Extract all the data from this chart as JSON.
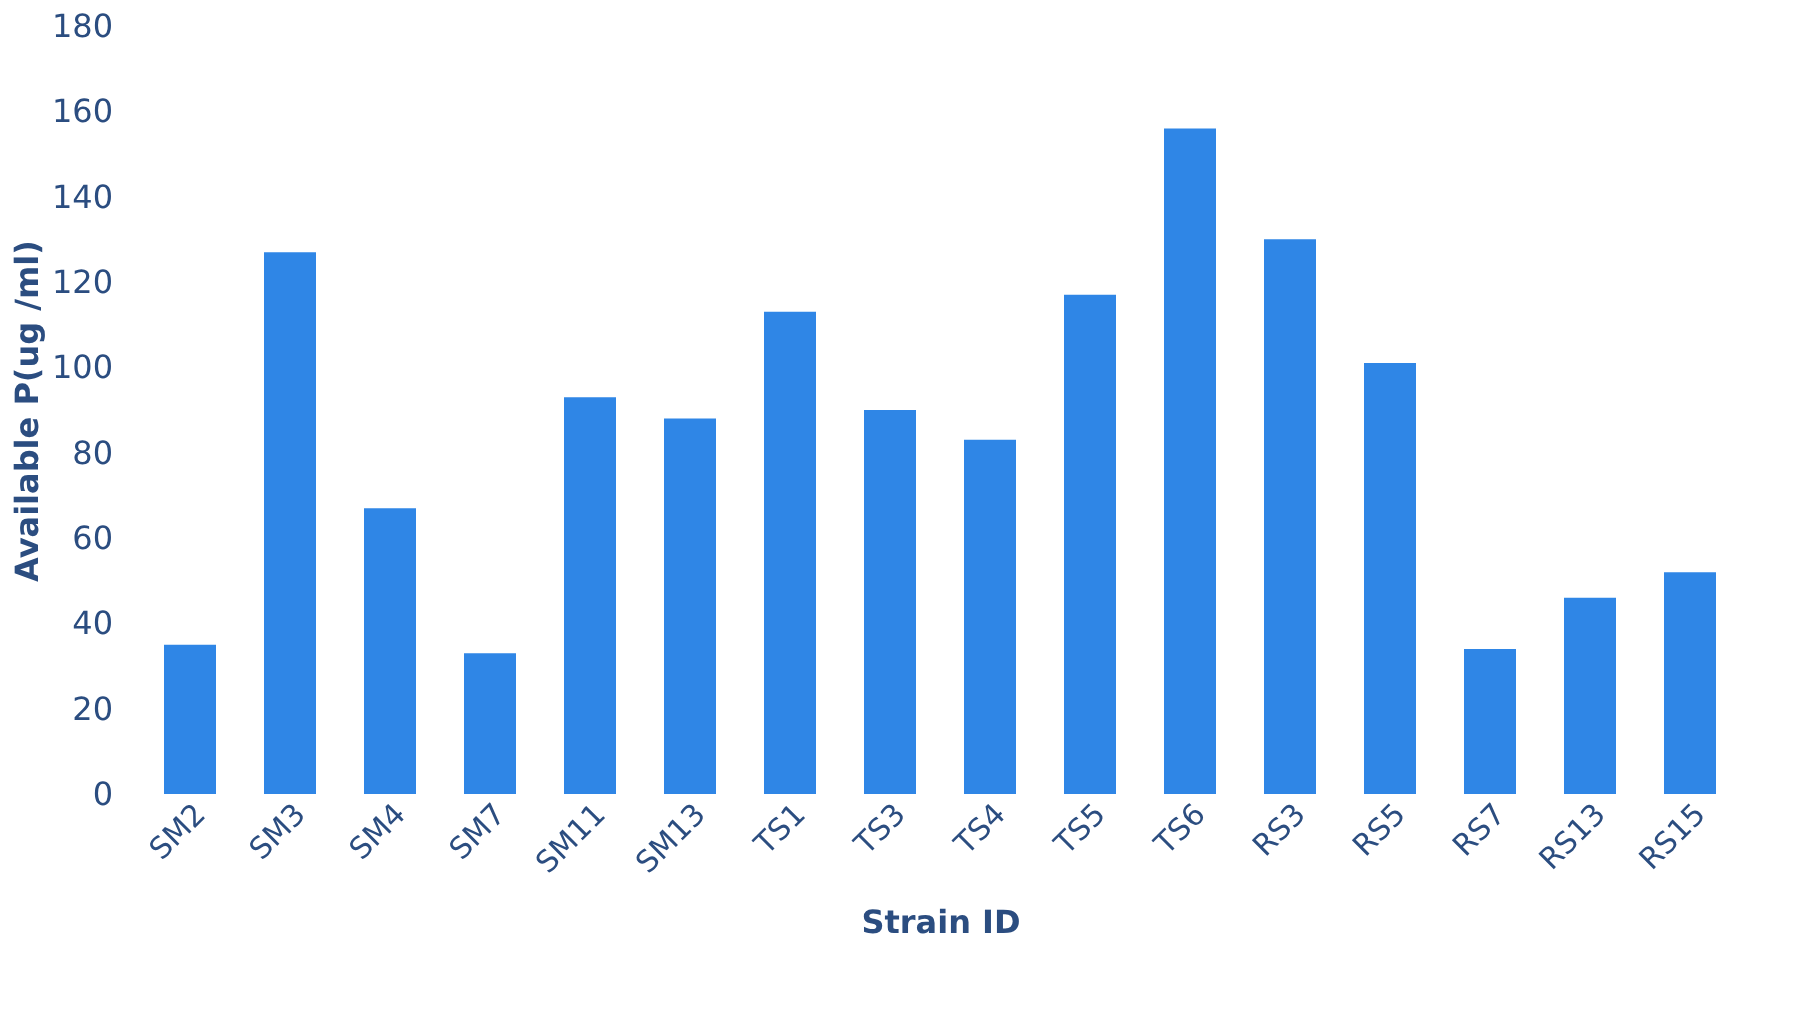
{
  "chart_data": {
    "type": "bar",
    "xlabel": "Strain ID",
    "ylabel": "Available P(ug /ml)",
    "categories": [
      "SM2",
      "SM3",
      "SM4",
      "SM7",
      "SM11",
      "SM13",
      "TS1",
      "TS3",
      "TS4",
      "TS5",
      "TS6",
      "RS3",
      "RS5",
      "RS7",
      "RS13",
      "RS15"
    ],
    "values": [
      35,
      127,
      67,
      33,
      93,
      88,
      113,
      90,
      83,
      117,
      156,
      130,
      101,
      34,
      46,
      52
    ],
    "color": "#2f86e6",
    "ylim": [
      0,
      180
    ],
    "yticks": [
      0,
      20,
      40,
      60,
      80,
      100,
      120,
      140,
      160,
      180
    ],
    "grid": false
  }
}
